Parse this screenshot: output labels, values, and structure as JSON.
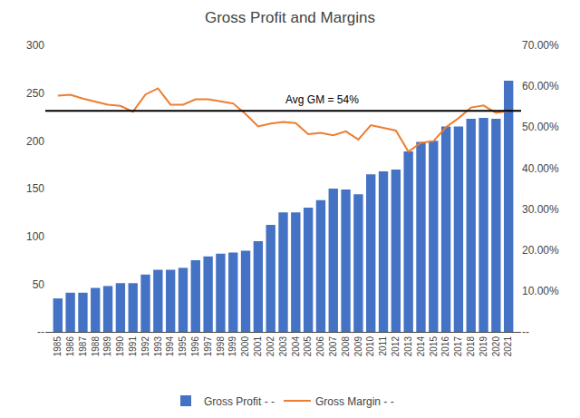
{
  "chart_data": {
    "type": "bar",
    "title": "Gross Profit and Margins",
    "x": [
      1985,
      1986,
      1987,
      1988,
      1989,
      1990,
      1991,
      1992,
      1993,
      1994,
      1995,
      1996,
      1997,
      1998,
      1999,
      2000,
      2001,
      2002,
      2003,
      2004,
      2005,
      2006,
      2007,
      2008,
      2009,
      2010,
      2011,
      2012,
      2013,
      2014,
      2015,
      2016,
      2017,
      2018,
      2019,
      2020,
      2021
    ],
    "series": [
      {
        "name": "Gross Profit - -",
        "type": "bar",
        "color": "#4472C4",
        "values": [
          35,
          41,
          41,
          46,
          48,
          51,
          51,
          60,
          65,
          65,
          67,
          75,
          79,
          82,
          83,
          85,
          95,
          112,
          125,
          125,
          130,
          138,
          150,
          149,
          144,
          165,
          168,
          170,
          189,
          199,
          200,
          215,
          215,
          223,
          224,
          223,
          263
        ]
      },
      {
        "name": "Gross Margin - -",
        "type": "line",
        "axis": "y2",
        "color": "#ED7D31",
        "values": [
          0.577,
          0.579,
          0.57,
          0.563,
          0.555,
          0.552,
          0.538,
          0.58,
          0.595,
          0.555,
          0.555,
          0.568,
          0.568,
          0.563,
          0.558,
          0.532,
          0.502,
          0.509,
          0.513,
          0.51,
          0.483,
          0.486,
          0.48,
          0.49,
          0.47,
          0.505,
          0.498,
          0.492,
          0.44,
          0.462,
          0.466,
          0.5,
          0.522,
          0.548,
          0.553,
          0.535,
          0.54
        ]
      }
    ],
    "xlim": [
      1984,
      2022
    ],
    "xticks": [
      1985,
      1986,
      1987,
      1988,
      1989,
      1990,
      1991,
      1992,
      1993,
      1994,
      1995,
      1996,
      1997,
      1998,
      1999,
      2000,
      2001,
      2002,
      2003,
      2004,
      2005,
      2006,
      2007,
      2008,
      2009,
      2010,
      2011,
      2012,
      2013,
      2014,
      2015,
      2016,
      2017,
      2018,
      2019,
      2020,
      2021
    ],
    "ylim": [
      0,
      300
    ],
    "yticks": [
      {
        "value": 0,
        "label": "--"
      },
      50,
      100,
      150,
      200,
      250,
      300
    ],
    "y2lim": [
      0,
      0.7
    ],
    "y2ticks": [
      {
        "value": 0.0,
        "label": "--"
      },
      {
        "value": 0.1,
        "label": "10.00%"
      },
      {
        "value": 0.2,
        "label": "20.00%"
      },
      {
        "value": 0.3,
        "label": "30.00%"
      },
      {
        "value": 0.4,
        "label": "40.00%"
      },
      {
        "value": 0.5,
        "label": "50.00%"
      },
      {
        "value": 0.6,
        "label": "60.00%"
      },
      {
        "value": 0.7,
        "label": "70.00%"
      }
    ],
    "reference_lines": [
      {
        "axis": "y2",
        "value": 0.54,
        "color": "#000000"
      }
    ],
    "annotations": [
      {
        "text": "Avg GM = 54%",
        "x": 2003,
        "y": 0.54,
        "axis": "y2"
      }
    ],
    "grid": false,
    "legend": "bottom"
  }
}
